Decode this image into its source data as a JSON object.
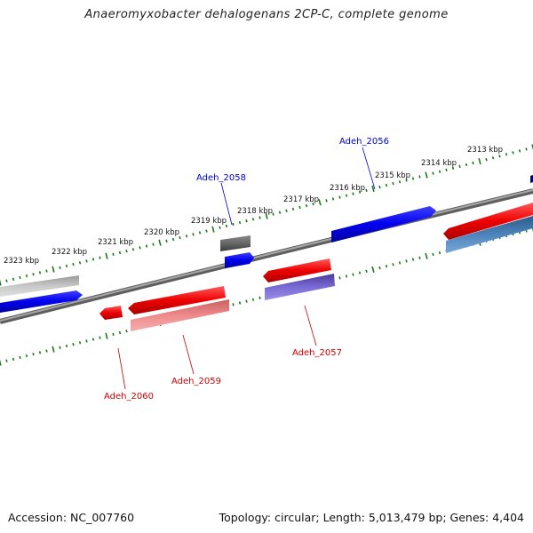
{
  "title": "Anaeromyxobacter dehalogenans 2CP-C, complete genome",
  "footer": {
    "accession": "Accession: NC_007760",
    "topology": "Topology: circular; Length: 5,013,479 bp; Genes: 4,404"
  },
  "ruler": {
    "tick_color": "#1a7a1a",
    "labels": [
      "2323 kbp",
      "2322 kbp",
      "2321 kbp",
      "2320 kbp",
      "2319 kbp",
      "2318 kbp",
      "2317 kbp",
      "2316 kbp",
      "2315 kbp",
      "2314 kbp",
      "2313 kbp"
    ]
  },
  "backbone_color": "#808080",
  "genes": [
    {
      "label": "Adeh_2056",
      "strand": "forward",
      "color": "#0000dd"
    },
    {
      "label": "Adeh_2057",
      "strand": "reverse",
      "color": "#dd0000"
    },
    {
      "label": "Adeh_2058",
      "strand": "forward",
      "color": "#0000dd"
    },
    {
      "label": "Adeh_2059",
      "strand": "reverse",
      "color": "#dd0000"
    },
    {
      "label": "Adeh_2060",
      "strand": "reverse",
      "color": "#dd0000"
    }
  ]
}
